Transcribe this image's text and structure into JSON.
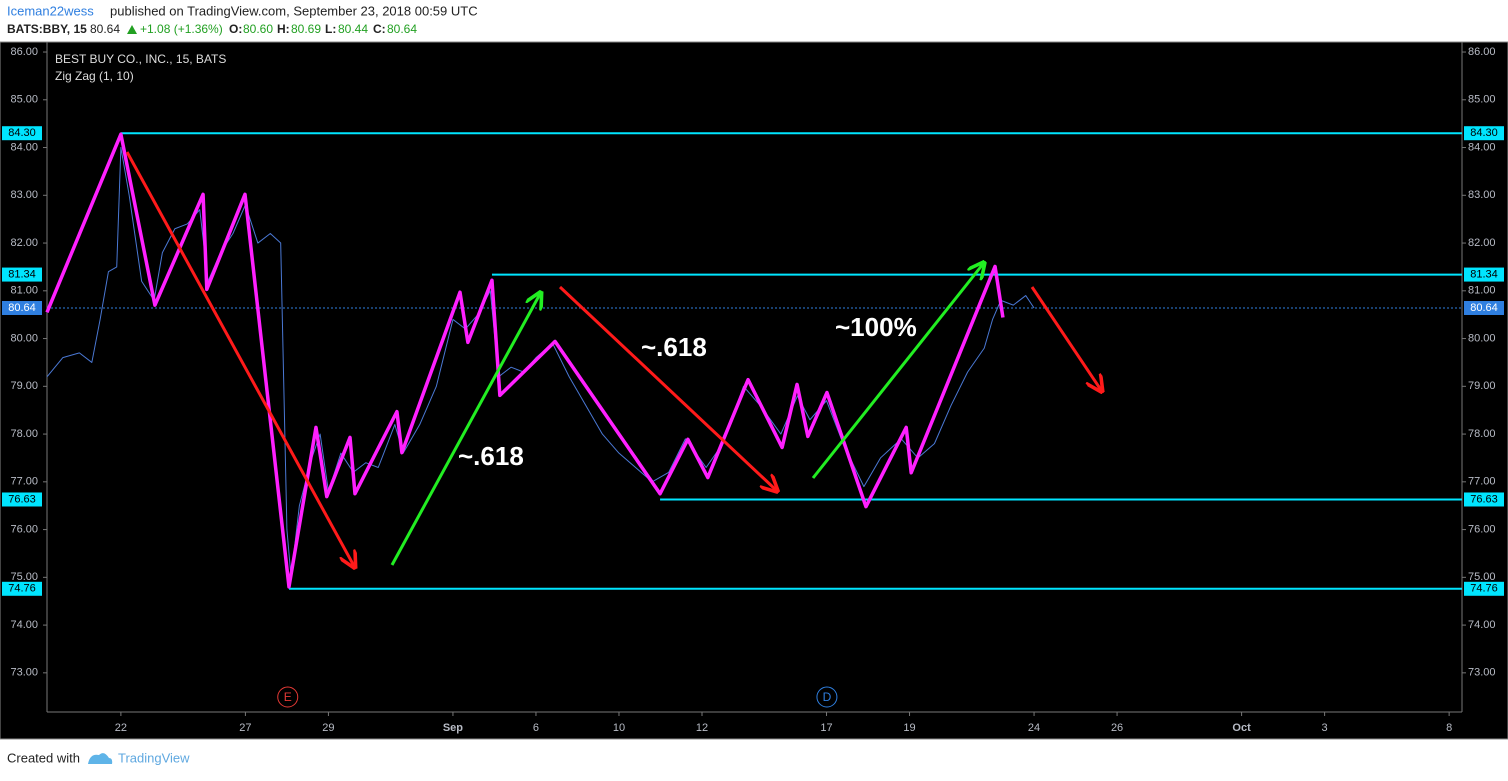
{
  "header": {
    "user": "Iceman22wess",
    "published": "published on TradingView.com, September 23, 2018 00:59 UTC"
  },
  "symbol_bar": {
    "symbol": "BATS:BBY, 15",
    "last": "80.64",
    "change": "+1.08 (+1.36%)",
    "o_label": "O:",
    "o": "80.60",
    "h_label": "H:",
    "h": "80.69",
    "l_label": "L:",
    "l": "80.44",
    "c_label": "C:",
    "c": "80.64"
  },
  "chart_data": {
    "type": "line",
    "title": "BEST BUY CO., INC., 15, BATS",
    "subtitle": "Zig Zag (1, 10)",
    "xlim": [
      -1.78,
      32.31
    ],
    "ylim": [
      72.18,
      86.21
    ],
    "xticks": [
      {
        "value": 0,
        "label": "22"
      },
      {
        "value": 3,
        "label": "27"
      },
      {
        "value": 5,
        "label": "29"
      },
      {
        "value": 8,
        "label": "Sep"
      },
      {
        "value": 10,
        "label": "6"
      },
      {
        "value": 12,
        "label": "10"
      },
      {
        "value": 14,
        "label": "12"
      },
      {
        "value": 17,
        "label": "17"
      },
      {
        "value": 19,
        "label": "19"
      },
      {
        "value": 22,
        "label": "24"
      },
      {
        "value": 24,
        "label": "26"
      },
      {
        "value": 27,
        "label": "Oct"
      },
      {
        "value": 29,
        "label": "3"
      },
      {
        "value": 32,
        "label": "8"
      }
    ],
    "yticks": [
      {
        "value": 73,
        "label": "73.00"
      },
      {
        "value": 74,
        "label": "74.00"
      },
      {
        "value": 75,
        "label": "75.00"
      },
      {
        "value": 76,
        "label": "76.00"
      },
      {
        "value": 77,
        "label": "77.00"
      },
      {
        "value": 78,
        "label": "78.00"
      },
      {
        "value": 79,
        "label": "79.00"
      },
      {
        "value": 80,
        "label": "80.00"
      },
      {
        "value": 81,
        "label": "81.00"
      },
      {
        "value": 82,
        "label": "82.00"
      },
      {
        "value": 83,
        "label": "83.00"
      },
      {
        "value": 84,
        "label": "84.00"
      },
      {
        "value": 85,
        "label": "85.00"
      },
      {
        "value": 86,
        "label": "86.00"
      }
    ],
    "price": {
      "color": "#4a78d4",
      "x": [
        -1.78,
        -1.4,
        -1.0,
        -0.7,
        -0.5,
        -0.3,
        -0.1,
        0,
        0.2,
        0.5,
        0.8,
        1.0,
        1.3,
        1.6,
        1.9,
        2.1,
        2.4,
        2.7,
        3.0,
        3.3,
        3.6,
        3.85,
        4.0,
        4.1,
        4.3,
        4.6,
        4.8,
        5.0,
        5.3,
        5.6,
        5.9,
        6.2,
        6.6,
        6.8,
        7.2,
        7.6,
        8.0,
        8.3,
        8.6,
        8.9,
        9.1,
        9.4,
        9.7,
        10.0,
        10.4,
        10.8,
        11.2,
        11.6,
        12.0,
        12.4,
        12.8,
        13.2,
        13.6,
        14.1,
        14.5,
        15.0,
        15.4,
        15.9,
        16.3,
        16.6,
        17.0,
        17.4,
        17.9,
        18.3,
        18.8,
        19.2,
        19.6,
        20.0,
        20.4,
        20.8,
        21.0,
        21.2,
        21.5,
        21.8,
        22.0
      ],
      "values": [
        79.2,
        79.6,
        79.7,
        79.5,
        80.4,
        81.4,
        81.5,
        84.0,
        83.0,
        81.2,
        80.8,
        81.8,
        82.3,
        82.4,
        82.7,
        81.2,
        81.8,
        82.2,
        82.8,
        82.0,
        82.2,
        82.0,
        76.0,
        75.0,
        76.5,
        77.5,
        78.0,
        76.8,
        77.6,
        77.2,
        77.4,
        77.3,
        78.2,
        77.6,
        78.2,
        79.0,
        80.4,
        80.2,
        80.5,
        81.0,
        79.2,
        79.4,
        79.3,
        79.6,
        79.9,
        79.2,
        78.6,
        78.0,
        77.6,
        77.3,
        77.0,
        77.2,
        77.9,
        77.3,
        77.8,
        79.0,
        78.6,
        78.0,
        78.8,
        78.3,
        78.7,
        77.8,
        76.9,
        77.5,
        77.9,
        77.5,
        77.8,
        78.6,
        79.3,
        79.8,
        80.4,
        80.8,
        80.7,
        80.9,
        80.64
      ]
    },
    "zigzag": {
      "color": "#ff20ff",
      "x": [
        -1.78,
        0,
        0.82,
        1.98,
        2.07,
        2.99,
        4.05,
        4.7,
        4.96,
        5.52,
        5.64,
        6.65,
        6.77,
        8.17,
        8.36,
        8.94,
        9.13,
        10.46,
        12.99,
        13.66,
        14.14,
        15.11,
        15.93,
        16.29,
        16.55,
        17.01,
        17.95,
        18.92,
        19.04,
        21.06,
        21.25
      ],
      "values": [
        80.55,
        84.28,
        80.7,
        83.02,
        81.03,
        83.02,
        74.8,
        78.14,
        76.69,
        77.93,
        76.75,
        78.47,
        77.61,
        80.97,
        79.92,
        81.22,
        78.81,
        79.94,
        76.75,
        77.89,
        77.09,
        79.14,
        77.72,
        79.04,
        77.95,
        78.87,
        76.48,
        78.14,
        77.19,
        81.51,
        80.44
      ]
    },
    "levels": [
      {
        "value": 84.3,
        "label": "84.30",
        "from": 0
      },
      {
        "value": 81.34,
        "label": "81.34",
        "from": 8.94
      },
      {
        "value": 76.63,
        "label": "76.63",
        "from": 12.99
      },
      {
        "value": 74.76,
        "label": "74.76",
        "from": 4.05
      }
    ],
    "level_color": "#00e5ff",
    "last_price": {
      "value": 80.64,
      "label": "80.64",
      "color": "#2f7fe0"
    },
    "events": [
      {
        "label": "E",
        "x": 4.02,
        "color": "#e53935"
      },
      {
        "label": "D",
        "x": 17.01,
        "color": "#2f7fe0"
      }
    ],
    "annotations": [
      "~.618",
      "~.618",
      "~100%"
    ]
  },
  "footer": {
    "created": "Created with",
    "brand": "TradingView"
  }
}
